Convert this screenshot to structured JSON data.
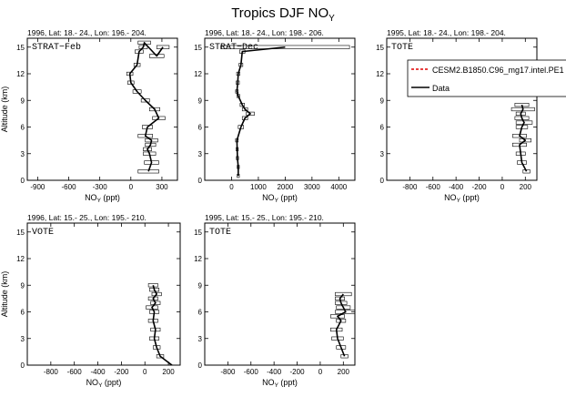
{
  "figure": {
    "title": "Tropics DJF NO",
    "title_subscript": "Y"
  },
  "axis_labels": {
    "ylabel": "Altitude (km)",
    "xlabel": "NO",
    "xlabel_subscript": "Y",
    "xlabel_unit": " (ppt)"
  },
  "legend": {
    "entries": [
      {
        "label": "CESM2.B1850.C96_mg17.intel.PE1",
        "color": "#e00000",
        "dash": true
      },
      {
        "label": "Data",
        "color": "#000000",
        "dash": false
      }
    ]
  },
  "chart_data": [
    {
      "type": "line",
      "panel_label": "STRAT−Feb",
      "header": "1996, Lat: 18.- 24., Lon: 196.- 204.",
      "xlim": [
        -1000,
        450
      ],
      "ylim": [
        0,
        16
      ],
      "xticks": [
        -900,
        -600,
        -300,
        0,
        300
      ],
      "yticks": [
        0,
        3,
        6,
        9,
        12,
        15
      ],
      "series": [
        {
          "x": [
            170,
            200,
            180,
            160,
            190,
            200,
            140,
            160,
            270,
            230,
            140,
            60,
            0,
            -10,
            60,
            80,
            120,
            130,
            250,
            310
          ],
          "y": [
            1,
            2,
            3,
            3.5,
            4,
            4.5,
            5,
            6,
            7,
            8,
            9,
            10,
            11,
            12,
            13,
            14.5,
            15,
            15.5,
            14,
            15
          ],
          "err": [
            100,
            70,
            60,
            40,
            50,
            60,
            70,
            50,
            60,
            50,
            40,
            40,
            30,
            30,
            30,
            40,
            40,
            60,
            70,
            60
          ]
        }
      ]
    },
    {
      "type": "line",
      "panel_label": "STRAT−Dec",
      "header": "1996, Lat: 18.- 24., Lon: 198.- 206.",
      "xlim": [
        -1000,
        4600
      ],
      "ylim": [
        0,
        16
      ],
      "xticks": [
        0,
        1000,
        2000,
        3000,
        4000
      ],
      "yticks": [
        0,
        3,
        6,
        9,
        12,
        15
      ],
      "series": [
        {
          "x": [
            250,
            250,
            220,
            210,
            200,
            350,
            500,
            700,
            500,
            400,
            250,
            200,
            230,
            250,
            350,
            400,
            2000
          ],
          "y": [
            0.5,
            1.5,
            2.5,
            3.5,
            4.5,
            6,
            7,
            7.5,
            8,
            8.5,
            9.5,
            10,
            11,
            12,
            13,
            14.5,
            15
          ],
          "err": [
            40,
            40,
            40,
            40,
            50,
            100,
            100,
            150,
            100,
            80,
            50,
            50,
            60,
            60,
            70,
            100,
            2400
          ]
        }
      ]
    },
    {
      "type": "line",
      "panel_label": "TOTE",
      "header": "1995, Lat: 18.- 24., Lon: 198.- 204.",
      "xlim": [
        -1000,
        300
      ],
      "ylim": [
        0,
        16
      ],
      "xticks": [
        -800,
        -600,
        -400,
        -200,
        0,
        200
      ],
      "yticks": [
        0,
        3,
        6,
        9,
        12,
        15
      ],
      "series": [
        {
          "x": [
            210,
            170,
            160,
            150,
            200,
            150,
            170,
            190,
            170,
            160,
            180,
            170
          ],
          "y": [
            1,
            2,
            3,
            4,
            4.5,
            5,
            6,
            6.5,
            7,
            7.5,
            8,
            8.5
          ],
          "err": [
            30,
            40,
            40,
            60,
            50,
            60,
            50,
            70,
            60,
            40,
            100,
            60
          ]
        }
      ]
    },
    {
      "type": "line",
      "panel_label": "VOTE",
      "header": "1996, Lat: 15.- 25., Lon: 195.- 210.",
      "xlim": [
        -1000,
        300
      ],
      "ylim": [
        0,
        16
      ],
      "xticks": [
        -800,
        -600,
        -400,
        -200,
        0,
        200
      ],
      "yticks": [
        0,
        3,
        6,
        9,
        12,
        15
      ],
      "series": [
        {
          "x": [
            230,
            130,
            100,
            80,
            90,
            70,
            80,
            60,
            90,
            70,
            100,
            80,
            70
          ],
          "y": [
            0,
            1,
            2,
            3,
            4,
            5,
            6,
            6.5,
            7,
            7.5,
            8,
            8.5,
            9
          ],
          "err": [
            0,
            30,
            30,
            40,
            40,
            40,
            40,
            50,
            40,
            40,
            40,
            40,
            40
          ]
        }
      ]
    },
    {
      "type": "line",
      "panel_label": "TOTE",
      "header": "1995, Lat: 15.- 25., Lon: 195.- 210.",
      "xlim": [
        -1000,
        300
      ],
      "ylim": [
        0,
        16
      ],
      "xticks": [
        -800,
        -600,
        -400,
        -200,
        0,
        200
      ],
      "yticks": [
        0,
        3,
        6,
        9,
        12,
        15
      ],
      "series": [
        {
          "x": [
            210,
            180,
            150,
            140,
            180,
            150,
            220,
            200,
            180,
            170,
            200
          ],
          "y": [
            1,
            2,
            3,
            4,
            5,
            5.5,
            6,
            6.5,
            7,
            7.5,
            8
          ],
          "err": [
            30,
            40,
            50,
            50,
            40,
            60,
            90,
            60,
            50,
            40,
            70
          ]
        }
      ]
    }
  ]
}
